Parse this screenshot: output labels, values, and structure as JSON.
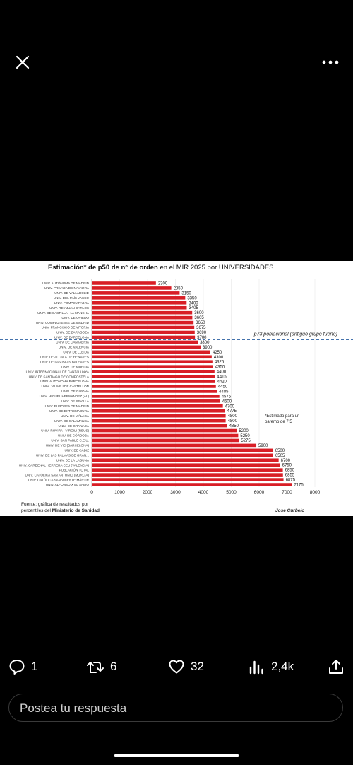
{
  "actions": {
    "replies": "1",
    "reposts": "6",
    "likes": "32",
    "views": "2,4k"
  },
  "reply": {
    "placeholder": "Postea tu respuesta"
  },
  "chart_data": {
    "type": "bar",
    "title_bold": "Estimación* de p50 de n° de orden",
    "title_rest": " en el MIR 2025 por UNIVERSIDADES",
    "categories": [
      "UNIV. AUTÓNOMA DE MADRID",
      "UNIV. PRIVADA DE NAVARRA",
      "UNIV. DE VALLADOLID",
      "UNIV. DEL PAÍS VASCO",
      "UNIV. POMPEU FABRA",
      "UNIV. REY JUAN CARLOS",
      "UNIV. DE CASTILLA - LA MANCHA",
      "UNIV. DE OVIEDO",
      "UNIV. COMPLUTENSE DE MADRID",
      "UNIV. FRANCISCO DE VITORIA",
      "UNIV. DE ZARAGOZA",
      "UNIV. DE BARCELONA",
      "UNIV. DE CANTABRIA",
      "UNIV. DE VALENCIA",
      "UNIV. DE LLEIDA",
      "UNIV. DE ALCALÁ DE HENARES",
      "UNIV. DE LAS ISLAS BALEARES",
      "UNIV. DE MURCIA",
      "UNIV. INTERNACIONAL DE CANTALUNYA",
      "UNIV. DE SANTIAGO DE COMPOSTELA",
      "UNIV. AUTÓNOMA BARCELONA",
      "UNIV. JAUME I DE CASTELLÓN",
      "UNIV. DE GIRONA",
      "UNIV. MIGUEL HERNÁNDEZ (AL)",
      "UNIV. DE SEVILLA",
      "UNIV. EUROPEA DE MADRID",
      "UNIV. DE EXTREMADURA",
      "UNIV. DE MÁLAGA",
      "UNIV. DE SALAMANCA",
      "UNIV. DE GRANADA",
      "UNIV. ROVIRA I VIRGILI (REUS)",
      "UNIV. DE CÓRDOBA",
      "UNIV. SAN PABLO C.E.U.",
      "UNIV. DE VIC (BARCELONA)",
      "UNIV. DE CÁDIZ",
      "UNIV. DE LAS PALMAS DE GRAN...",
      "UNIV. DE LA LAGUNA",
      "UNIV. CARDENAL HERRERA CEU (VALENCIA)",
      "POBLACIÓN TOTAL",
      "UNIV. CATÓLICA SAN ANTONIO (MURCIA)",
      "UNIV. CATÓLICA SAN VICENTE MÁRTIR",
      "UNIV. ALFONSO X EL SABIO"
    ],
    "values": [
      2300,
      2850,
      3150,
      3350,
      3400,
      3405,
      3600,
      3605,
      3650,
      3675,
      3690,
      3700,
      3800,
      3900,
      4250,
      4300,
      4325,
      4350,
      4400,
      4415,
      4420,
      4450,
      4485,
      4575,
      4600,
      4700,
      4775,
      4800,
      4800,
      4850,
      5200,
      5250,
      5275,
      5900,
      6500,
      6505,
      6700,
      6750,
      6850,
      6855,
      6875,
      7175
    ],
    "xlim": [
      0,
      8000
    ],
    "xticks": [
      "0",
      "1000",
      "2000",
      "3000",
      "4000",
      "5000",
      "6000",
      "7000",
      "8000"
    ],
    "bar_color": "#d81e26",
    "reference_line": {
      "after_index": 11,
      "label": "p73 poblacional (antiguo grupo fuerte)",
      "color": "#2a5fa0"
    },
    "note": [
      "*Estimado para un",
      "baremo de 7,5"
    ],
    "source": {
      "line1": "Fuente: gráfica de resultados por",
      "line2_prefix": "percentiles del ",
      "line2_bold": "Ministerio de Sanidad"
    },
    "author": "Jose Curbelo"
  }
}
